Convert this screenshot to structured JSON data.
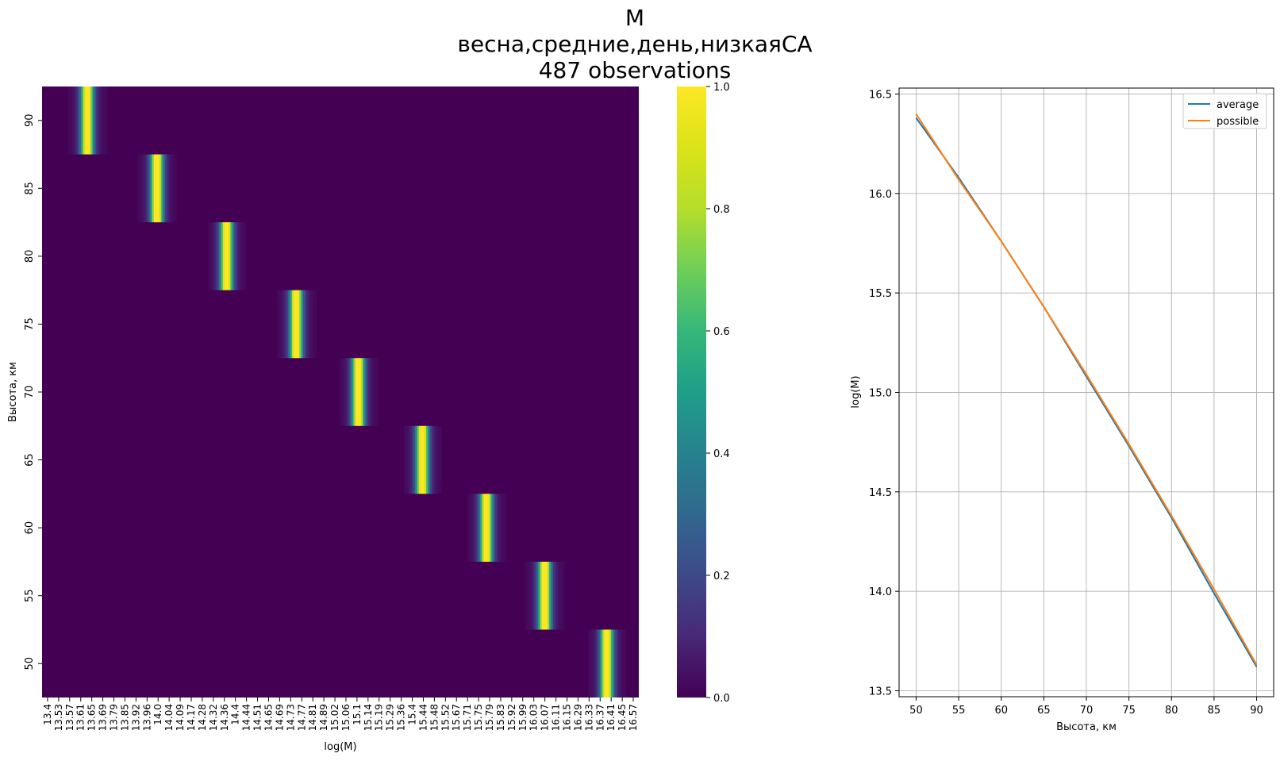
{
  "figure": {
    "title_lines": [
      "M",
      "весна,средние,день,низкаяСА",
      "487 observations"
    ]
  },
  "chart_data": [
    {
      "type": "heatmap",
      "xlabel": "log(M)",
      "ylabel": "Высота, км",
      "x_tick_labels": [
        "13.4",
        "13.53",
        "13.57",
        "13.61",
        "13.65",
        "13.69",
        "13.79",
        "13.85",
        "13.92",
        "13.96",
        "14.0",
        "14.04",
        "14.09",
        "14.17",
        "14.28",
        "14.32",
        "14.36",
        "14.4",
        "14.44",
        "14.51",
        "14.65",
        "14.69",
        "14.73",
        "14.77",
        "14.81",
        "14.89",
        "15.02",
        "15.06",
        "15.1",
        "15.14",
        "15.19",
        "15.29",
        "15.36",
        "15.4",
        "15.44",
        "15.48",
        "15.52",
        "15.67",
        "15.71",
        "15.75",
        "15.79",
        "15.83",
        "15.92",
        "15.99",
        "16.03",
        "16.07",
        "16.11",
        "16.15",
        "16.29",
        "16.33",
        "16.37",
        "16.41",
        "16.45",
        "16.57"
      ],
      "rows": [
        90,
        85,
        80,
        75,
        70,
        65,
        60,
        55,
        50
      ],
      "y_tick_labels": [
        "90",
        "85",
        "80",
        "75",
        "70",
        "65",
        "60",
        "55",
        "50"
      ],
      "peaks_logM": [
        13.64,
        14.01,
        14.38,
        14.75,
        15.08,
        15.42,
        15.76,
        16.07,
        16.4
      ],
      "colorbar": {
        "colormap": "viridis",
        "range": [
          0.0,
          1.0
        ],
        "tick_labels": [
          "0.0",
          "0.2",
          "0.4",
          "0.6",
          "0.8",
          "1.0"
        ]
      }
    },
    {
      "type": "line",
      "xlabel": "Высота, км",
      "ylabel": "log(M)",
      "x": [
        50,
        55,
        60,
        65,
        70,
        75,
        80,
        85,
        90
      ],
      "series": [
        {
          "name": "average",
          "color": "#1f77b4",
          "values": [
            16.38,
            16.08,
            15.76,
            15.43,
            15.08,
            14.73,
            14.37,
            13.99,
            13.62
          ]
        },
        {
          "name": "possible",
          "color": "#ff7f0e",
          "values": [
            16.4,
            16.07,
            15.76,
            15.43,
            15.09,
            14.74,
            14.38,
            14.01,
            13.63
          ]
        }
      ],
      "xlim": [
        48,
        92
      ],
      "ylim": [
        13.47,
        16.53
      ],
      "x_tick_labels": [
        "50",
        "55",
        "60",
        "65",
        "70",
        "75",
        "80",
        "85",
        "90"
      ],
      "y_tick_labels": [
        "13.5",
        "14.0",
        "14.5",
        "15.0",
        "15.5",
        "16.0",
        "16.5"
      ],
      "grid": true,
      "legend_position": "top-right"
    }
  ]
}
